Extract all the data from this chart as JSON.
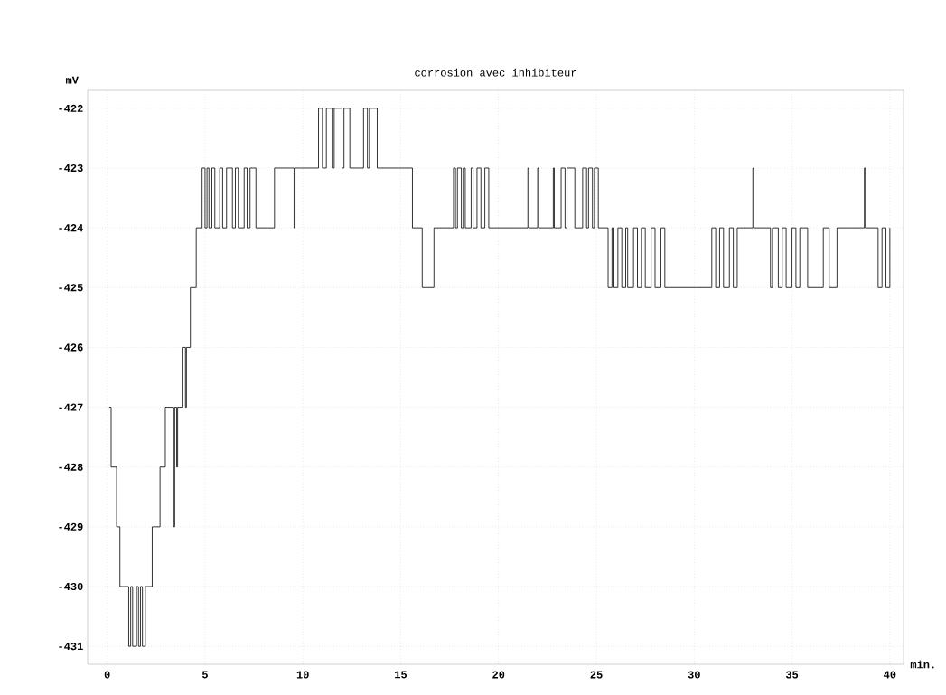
{
  "chart_data": {
    "type": "step",
    "title": "corrosion avec inhibiteur",
    "xlabel": "min.",
    "ylabel": "mV",
    "x": [
      0.1,
      0.2,
      0.48,
      0.65,
      1.1,
      1.2,
      1.3,
      1.5,
      1.6,
      1.7,
      1.8,
      1.95,
      2.3,
      2.7,
      2.97,
      3.4,
      3.45,
      3.55,
      3.6,
      3.83,
      4.0,
      4.05,
      4.25,
      4.55,
      4.85,
      5.0,
      5.1,
      5.2,
      5.35,
      5.5,
      5.75,
      5.9,
      6.1,
      6.4,
      6.55,
      6.7,
      7.0,
      7.15,
      7.3,
      7.6,
      8.55,
      9.55,
      9.6,
      10.8,
      11.0,
      11.2,
      11.5,
      11.6,
      12.0,
      12.1,
      12.4,
      13.1,
      13.3,
      13.4,
      13.8,
      15.6,
      16.1,
      16.7,
      17.7,
      17.8,
      17.9,
      18.1,
      18.2,
      18.3,
      18.6,
      18.7,
      18.9,
      19.1,
      19.3,
      19.5,
      21.5,
      21.55,
      22.0,
      22.05,
      22.8,
      22.85,
      23.2,
      23.4,
      23.5,
      23.9,
      24.3,
      24.5,
      24.6,
      24.8,
      24.9,
      25.1,
      25.6,
      25.8,
      25.9,
      26.1,
      26.3,
      26.5,
      26.6,
      26.9,
      27.1,
      27.3,
      27.5,
      27.8,
      28.0,
      28.3,
      28.5,
      30.9,
      31.1,
      31.3,
      31.5,
      31.8,
      32.0,
      32.2,
      33.0,
      33.05,
      33.9,
      34.0,
      34.3,
      34.5,
      34.7,
      35.0,
      35.2,
      35.4,
      35.8,
      36.6,
      36.9,
      37.3,
      38.7,
      38.75,
      39.4,
      39.6,
      39.8,
      40.0
    ],
    "series": [
      {
        "color": "#000000",
        "values": [
          -427,
          -428,
          -429,
          -430,
          -431,
          -430,
          -431,
          -430,
          -431,
          -430,
          -431,
          -430,
          -429,
          -428,
          -427,
          -429,
          -427,
          -428,
          -427,
          -426,
          -427,
          -426,
          -425,
          -424,
          -423,
          -424,
          -423,
          -424,
          -423,
          -424,
          -423,
          -424,
          -423,
          -424,
          -423,
          -424,
          -423,
          -424,
          -423,
          -424,
          -423,
          -424,
          -423,
          -422,
          -423,
          -422,
          -423,
          -422,
          -423,
          -422,
          -423,
          -422,
          -423,
          -422,
          -423,
          -424,
          -425,
          -424,
          -423,
          -424,
          -423,
          -424,
          -423,
          -424,
          -423,
          -424,
          -423,
          -424,
          -423,
          -424,
          -423,
          -424,
          -423,
          -424,
          -423,
          -424,
          -423,
          -424,
          -423,
          -424,
          -423,
          -424,
          -423,
          -424,
          -423,
          -424,
          -425,
          -424,
          -425,
          -424,
          -425,
          -424,
          -425,
          -424,
          -425,
          -424,
          -425,
          -424,
          -425,
          -424,
          -425,
          -424,
          -425,
          -424,
          -425,
          -424,
          -425,
          -424,
          -423,
          -424,
          -425,
          -424,
          -425,
          -424,
          -425,
          -424,
          -425,
          -424,
          -425,
          -424,
          -425,
          -424,
          -423,
          -424,
          -425,
          -424,
          -425,
          -424
        ]
      }
    ],
    "xlim": [
      -1,
      40.7
    ],
    "ylim": [
      -431.3,
      -421.7
    ],
    "xticks": [
      0,
      5,
      10,
      15,
      20,
      25,
      30,
      35,
      40
    ],
    "yticks": [
      -431,
      -430,
      -429,
      -428,
      -427,
      -426,
      -425,
      -424,
      -423,
      -422
    ],
    "grid": true
  }
}
